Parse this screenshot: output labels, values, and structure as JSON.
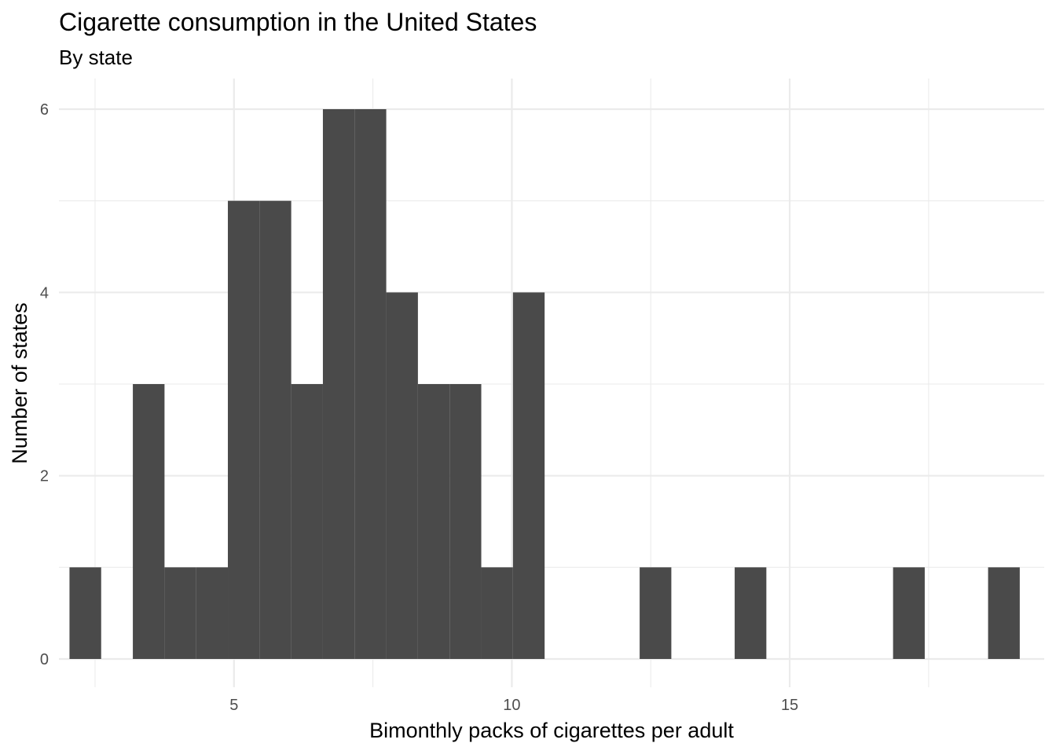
{
  "chart_data": {
    "type": "bar",
    "title": "Cigarette consumption in the United States",
    "subtitle": "By state",
    "xlabel": "Bimonthly packs of cigarettes per adult",
    "ylabel": "Number of states",
    "xlim": [
      1.85,
      19.58
    ],
    "ylim": [
      0,
      6
    ],
    "x_ticks": [
      5,
      10,
      15
    ],
    "y_ticks": [
      0,
      2,
      4,
      6
    ],
    "grid": true,
    "legend": "none",
    "bar_color": "#4a4a4a",
    "bins": [
      {
        "start": 2.04,
        "end": 2.61,
        "count": 1
      },
      {
        "start": 2.61,
        "end": 3.18,
        "count": 0
      },
      {
        "start": 3.18,
        "end": 3.75,
        "count": 3
      },
      {
        "start": 3.75,
        "end": 4.32,
        "count": 1
      },
      {
        "start": 4.32,
        "end": 4.89,
        "count": 1
      },
      {
        "start": 4.89,
        "end": 5.46,
        "count": 5
      },
      {
        "start": 5.46,
        "end": 6.03,
        "count": 5
      },
      {
        "start": 6.03,
        "end": 6.6,
        "count": 3
      },
      {
        "start": 6.6,
        "end": 7.17,
        "count": 6
      },
      {
        "start": 7.17,
        "end": 7.74,
        "count": 6
      },
      {
        "start": 7.74,
        "end": 8.31,
        "count": 4
      },
      {
        "start": 8.31,
        "end": 8.88,
        "count": 3
      },
      {
        "start": 8.88,
        "end": 9.45,
        "count": 3
      },
      {
        "start": 9.45,
        "end": 10.02,
        "count": 1
      },
      {
        "start": 10.02,
        "end": 10.59,
        "count": 4
      },
      {
        "start": 10.59,
        "end": 11.16,
        "count": 0
      },
      {
        "start": 11.16,
        "end": 11.73,
        "count": 0
      },
      {
        "start": 11.73,
        "end": 12.3,
        "count": 0
      },
      {
        "start": 12.3,
        "end": 12.87,
        "count": 1
      },
      {
        "start": 12.87,
        "end": 13.44,
        "count": 0
      },
      {
        "start": 13.44,
        "end": 14.01,
        "count": 0
      },
      {
        "start": 14.01,
        "end": 14.58,
        "count": 1
      },
      {
        "start": 14.58,
        "end": 15.15,
        "count": 0
      },
      {
        "start": 15.15,
        "end": 15.72,
        "count": 0
      },
      {
        "start": 15.72,
        "end": 16.29,
        "count": 0
      },
      {
        "start": 16.29,
        "end": 16.86,
        "count": 0
      },
      {
        "start": 16.86,
        "end": 17.43,
        "count": 1
      },
      {
        "start": 17.43,
        "end": 18.0,
        "count": 0
      },
      {
        "start": 18.0,
        "end": 18.57,
        "count": 0
      },
      {
        "start": 18.57,
        "end": 19.14,
        "count": 1
      }
    ]
  }
}
